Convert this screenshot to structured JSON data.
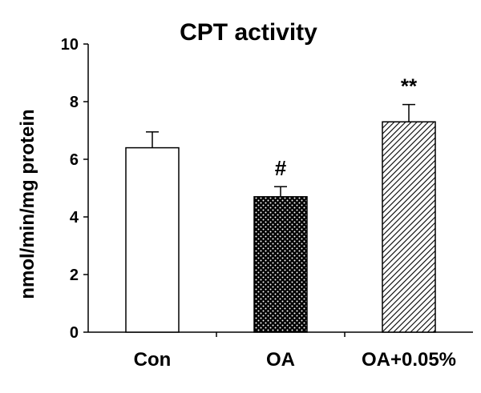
{
  "chart_data": {
    "type": "bar",
    "title": "CPT activity",
    "xlabel": "",
    "ylabel": "nmol/min/mg protein",
    "ylim": [
      0,
      10
    ],
    "yticks": [
      0,
      2,
      4,
      6,
      8,
      10
    ],
    "categories": [
      "Con",
      "OA",
      "OA+0.05%"
    ],
    "values": [
      6.4,
      4.7,
      7.3
    ],
    "errors": [
      0.55,
      0.35,
      0.6
    ],
    "annotations": [
      "",
      "#",
      "**"
    ],
    "fills": [
      "solid-white",
      "dotted-black",
      "diagonal-hatch"
    ],
    "grid": false
  }
}
